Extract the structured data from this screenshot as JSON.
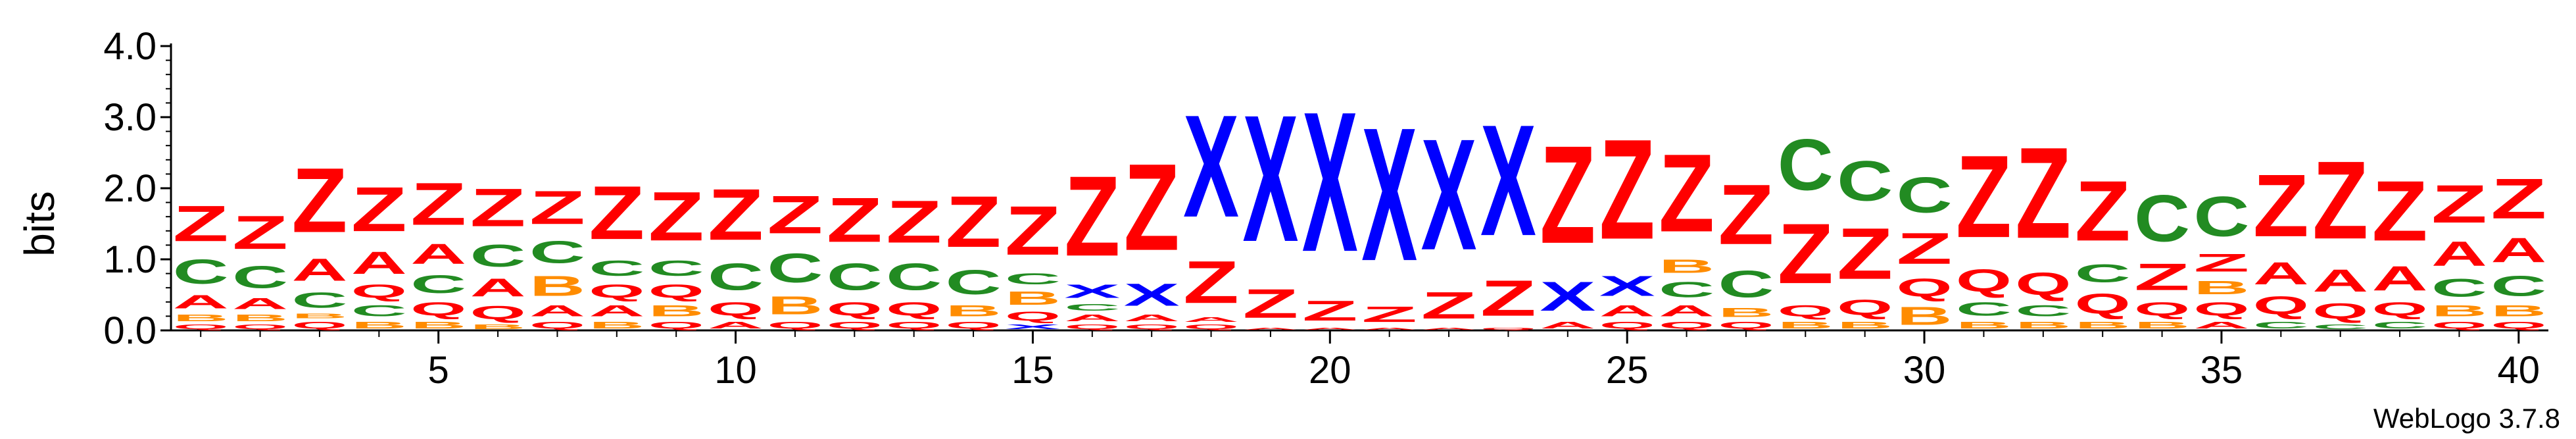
{
  "chart_data": {
    "type": "sequence-logo",
    "ylabel": "bits",
    "ylim": [
      0,
      4.0
    ],
    "y_ticks": [
      "0.0",
      "1.0",
      "2.0",
      "3.0",
      "4.0"
    ],
    "x_ticks": [
      "5",
      "10",
      "15",
      "20",
      "25",
      "30",
      "35",
      "40"
    ],
    "x_tick_positions": [
      5,
      10,
      15,
      20,
      25,
      30,
      35,
      40
    ],
    "footer": "WebLogo 3.7.8",
    "colors": {
      "Z": "#ff0000",
      "X": "#0000ff",
      "C": "#228b22",
      "A": "#ff0000",
      "B": "#ff8c00",
      "Q": "#ff0000"
    },
    "positions": [
      {
        "x": 1,
        "stack": [
          {
            "l": "Q",
            "h": 0.1
          },
          {
            "l": "B",
            "h": 0.15
          },
          {
            "l": "A",
            "h": 0.3
          },
          {
            "l": "C",
            "h": 0.55
          },
          {
            "l": "Z",
            "h": 0.8
          }
        ]
      },
      {
        "x": 2,
        "stack": [
          {
            "l": "Q",
            "h": 0.1
          },
          {
            "l": "B",
            "h": 0.15
          },
          {
            "l": "A",
            "h": 0.25
          },
          {
            "l": "C",
            "h": 0.5
          },
          {
            "l": "Z",
            "h": 0.75
          }
        ]
      },
      {
        "x": 3,
        "stack": [
          {
            "l": "Q",
            "h": 0.15
          },
          {
            "l": "B",
            "h": 0.1
          },
          {
            "l": "C",
            "h": 0.35
          },
          {
            "l": "A",
            "h": 0.5
          },
          {
            "l": "Z",
            "h": 1.45
          }
        ]
      },
      {
        "x": 4,
        "stack": [
          {
            "l": "B",
            "h": 0.15
          },
          {
            "l": "C",
            "h": 0.25
          },
          {
            "l": "Q",
            "h": 0.3
          },
          {
            "l": "A",
            "h": 0.5
          },
          {
            "l": "Z",
            "h": 1.0
          }
        ]
      },
      {
        "x": 5,
        "stack": [
          {
            "l": "B",
            "h": 0.15
          },
          {
            "l": "Q",
            "h": 0.3
          },
          {
            "l": "C",
            "h": 0.4
          },
          {
            "l": "A",
            "h": 0.45
          },
          {
            "l": "Z",
            "h": 0.95
          }
        ]
      },
      {
        "x": 6,
        "stack": [
          {
            "l": "B",
            "h": 0.1
          },
          {
            "l": "Q",
            "h": 0.3
          },
          {
            "l": "A",
            "h": 0.4
          },
          {
            "l": "C",
            "h": 0.5
          },
          {
            "l": "Z",
            "h": 0.85
          }
        ]
      },
      {
        "x": 7,
        "stack": [
          {
            "l": "Q",
            "h": 0.15
          },
          {
            "l": "A",
            "h": 0.25
          },
          {
            "l": "B",
            "h": 0.45
          },
          {
            "l": "C",
            "h": 0.5
          },
          {
            "l": "Z",
            "h": 0.75
          }
        ]
      },
      {
        "x": 8,
        "stack": [
          {
            "l": "B",
            "h": 0.15
          },
          {
            "l": "A",
            "h": 0.25
          },
          {
            "l": "Q",
            "h": 0.3
          },
          {
            "l": "C",
            "h": 0.35
          },
          {
            "l": "Z",
            "h": 1.2
          }
        ]
      },
      {
        "x": 9,
        "stack": [
          {
            "l": "Q",
            "h": 0.15
          },
          {
            "l": "B",
            "h": 0.25
          },
          {
            "l": "Q",
            "h": 0.3
          },
          {
            "l": "C",
            "h": 0.35
          },
          {
            "l": "Z",
            "h": 1.1
          }
        ]
      },
      {
        "x": 10,
        "stack": [
          {
            "l": "A",
            "h": 0.15
          },
          {
            "l": "Q",
            "h": 0.3
          },
          {
            "l": "C",
            "h": 0.6
          },
          {
            "l": "Z",
            "h": 1.15
          }
        ]
      },
      {
        "x": 11,
        "stack": [
          {
            "l": "Q",
            "h": 0.15
          },
          {
            "l": "B",
            "h": 0.4
          },
          {
            "l": "C",
            "h": 0.65
          },
          {
            "l": "Z",
            "h": 0.85
          }
        ]
      },
      {
        "x": 12,
        "stack": [
          {
            "l": "Q",
            "h": 0.15
          },
          {
            "l": "Q",
            "h": 0.3
          },
          {
            "l": "C",
            "h": 0.6
          },
          {
            "l": "Z",
            "h": 1.0
          }
        ]
      },
      {
        "x": 13,
        "stack": [
          {
            "l": "Q",
            "h": 0.15
          },
          {
            "l": "Q",
            "h": 0.3
          },
          {
            "l": "C",
            "h": 0.6
          },
          {
            "l": "Z",
            "h": 0.95
          }
        ]
      },
      {
        "x": 14,
        "stack": [
          {
            "l": "Q",
            "h": 0.15
          },
          {
            "l": "B",
            "h": 0.25
          },
          {
            "l": "C",
            "h": 0.55
          },
          {
            "l": "Z",
            "h": 1.15
          }
        ]
      },
      {
        "x": 15,
        "stack": [
          {
            "l": "X",
            "h": 0.1
          },
          {
            "l": "Q",
            "h": 0.2
          },
          {
            "l": "B",
            "h": 0.3
          },
          {
            "l": "C",
            "h": 0.25
          },
          {
            "l": "Z",
            "h": 1.1
          }
        ]
      },
      {
        "x": 16,
        "stack": [
          {
            "l": "Q",
            "h": 0.1
          },
          {
            "l": "A",
            "h": 0.15
          },
          {
            "l": "C",
            "h": 0.15
          },
          {
            "l": "X",
            "h": 0.3
          },
          {
            "l": "Z",
            "h": 1.8
          }
        ]
      },
      {
        "x": 17,
        "stack": [
          {
            "l": "Q",
            "h": 0.1
          },
          {
            "l": "A",
            "h": 0.15
          },
          {
            "l": "X",
            "h": 0.5
          },
          {
            "l": "Z",
            "h": 1.95
          }
        ]
      },
      {
        "x": 18,
        "stack": [
          {
            "l": "Q",
            "h": 0.1
          },
          {
            "l": "A",
            "h": 0.1
          },
          {
            "l": "Z",
            "h": 0.95
          },
          {
            "l": "X",
            "h": 2.3
          }
        ]
      },
      {
        "x": 19,
        "stack": [
          {
            "l": "A",
            "h": 0.05
          },
          {
            "l": "Z",
            "h": 0.65
          },
          {
            "l": "X",
            "h": 2.85
          }
        ]
      },
      {
        "x": 20,
        "stack": [
          {
            "l": "A",
            "h": 0.05
          },
          {
            "l": "Z",
            "h": 0.45
          },
          {
            "l": "X",
            "h": 3.15
          }
        ]
      },
      {
        "x": 21,
        "stack": [
          {
            "l": "A",
            "h": 0.05
          },
          {
            "l": "Z",
            "h": 0.35
          },
          {
            "l": "X",
            "h": 3.0
          }
        ]
      },
      {
        "x": 22,
        "stack": [
          {
            "l": "A",
            "h": 0.05
          },
          {
            "l": "Z",
            "h": 0.6
          },
          {
            "l": "X",
            "h": 2.5
          }
        ]
      },
      {
        "x": 23,
        "stack": [
          {
            "l": "Q",
            "h": 0.05
          },
          {
            "l": "Z",
            "h": 0.8
          },
          {
            "l": "X",
            "h": 2.5
          }
        ]
      },
      {
        "x": 24,
        "stack": [
          {
            "l": "A",
            "h": 0.15
          },
          {
            "l": "X",
            "h": 0.65
          },
          {
            "l": "Z",
            "h": 2.2
          }
        ]
      },
      {
        "x": 25,
        "stack": [
          {
            "l": "Q",
            "h": 0.15
          },
          {
            "l": "A",
            "h": 0.25
          },
          {
            "l": "X",
            "h": 0.45
          },
          {
            "l": "Z",
            "h": 2.25
          }
        ]
      },
      {
        "x": 26,
        "stack": [
          {
            "l": "Q",
            "h": 0.15
          },
          {
            "l": "A",
            "h": 0.25
          },
          {
            "l": "C",
            "h": 0.35
          },
          {
            "l": "B",
            "h": 0.3
          },
          {
            "l": "Z",
            "h": 1.75
          }
        ]
      },
      {
        "x": 27,
        "stack": [
          {
            "l": "Q",
            "h": 0.15
          },
          {
            "l": "B",
            "h": 0.2
          },
          {
            "l": "C",
            "h": 0.6
          },
          {
            "l": "Z",
            "h": 1.35
          }
        ]
      },
      {
        "x": 28,
        "stack": [
          {
            "l": "B",
            "h": 0.15
          },
          {
            "l": "Q",
            "h": 0.25
          },
          {
            "l": "Z",
            "h": 1.35
          },
          {
            "l": "C",
            "h": 1.15
          }
        ]
      },
      {
        "x": 29,
        "stack": [
          {
            "l": "B",
            "h": 0.15
          },
          {
            "l": "Q",
            "h": 0.35
          },
          {
            "l": "Z",
            "h": 1.15
          },
          {
            "l": "C",
            "h": 0.9
          }
        ]
      },
      {
        "x": 30,
        "stack": [
          {
            "l": "B",
            "h": 0.4
          },
          {
            "l": "Q",
            "h": 0.4
          },
          {
            "l": "Z",
            "h": 0.7
          },
          {
            "l": "C",
            "h": 0.8
          }
        ]
      },
      {
        "x": 31,
        "stack": [
          {
            "l": "B",
            "h": 0.15
          },
          {
            "l": "C",
            "h": 0.3
          },
          {
            "l": "Q",
            "h": 0.5
          },
          {
            "l": "Z",
            "h": 1.85
          }
        ]
      },
      {
        "x": 32,
        "stack": [
          {
            "l": "B",
            "h": 0.15
          },
          {
            "l": "C",
            "h": 0.25
          },
          {
            "l": "Q",
            "h": 0.5
          },
          {
            "l": "Z",
            "h": 2.05
          }
        ]
      },
      {
        "x": 33,
        "stack": [
          {
            "l": "B",
            "h": 0.15
          },
          {
            "l": "Q",
            "h": 0.45
          },
          {
            "l": "C",
            "h": 0.4
          },
          {
            "l": "Z",
            "h": 1.35
          }
        ]
      },
      {
        "x": 34,
        "stack": [
          {
            "l": "B",
            "h": 0.15
          },
          {
            "l": "Q",
            "h": 0.3
          },
          {
            "l": "Z",
            "h": 0.6
          },
          {
            "l": "C",
            "h": 1.05
          }
        ]
      },
      {
        "x": 35,
        "stack": [
          {
            "l": "A",
            "h": 0.15
          },
          {
            "l": "Q",
            "h": 0.3
          },
          {
            "l": "B",
            "h": 0.3
          },
          {
            "l": "Z",
            "h": 0.4
          },
          {
            "l": "C",
            "h": 0.9
          }
        ]
      },
      {
        "x": 36,
        "stack": [
          {
            "l": "C",
            "h": 0.15
          },
          {
            "l": "Q",
            "h": 0.4
          },
          {
            "l": "A",
            "h": 0.5
          },
          {
            "l": "Z",
            "h": 1.4
          }
        ]
      },
      {
        "x": 37,
        "stack": [
          {
            "l": "C",
            "h": 0.1
          },
          {
            "l": "Q",
            "h": 0.35
          },
          {
            "l": "A",
            "h": 0.5
          },
          {
            "l": "Z",
            "h": 1.75
          }
        ]
      },
      {
        "x": 38,
        "stack": [
          {
            "l": "C",
            "h": 0.15
          },
          {
            "l": "Q",
            "h": 0.3
          },
          {
            "l": "A",
            "h": 0.55
          },
          {
            "l": "Z",
            "h": 1.35
          }
        ]
      },
      {
        "x": 39,
        "stack": [
          {
            "l": "Q",
            "h": 0.15
          },
          {
            "l": "B",
            "h": 0.25
          },
          {
            "l": "C",
            "h": 0.4
          },
          {
            "l": "A",
            "h": 0.55
          },
          {
            "l": "Z",
            "h": 0.85
          }
        ]
      },
      {
        "x": 40,
        "stack": [
          {
            "l": "Q",
            "h": 0.15
          },
          {
            "l": "B",
            "h": 0.25
          },
          {
            "l": "C",
            "h": 0.45
          },
          {
            "l": "A",
            "h": 0.55
          },
          {
            "l": "Z",
            "h": 0.9
          }
        ]
      }
    ]
  }
}
